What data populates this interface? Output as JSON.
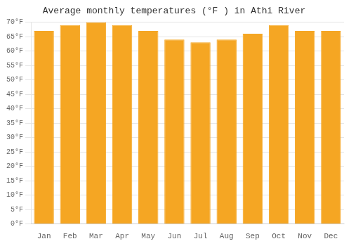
{
  "chart_data": {
    "type": "bar",
    "title": "Average monthly temperatures (°F ) in Athi River",
    "categories": [
      "Jan",
      "Feb",
      "Mar",
      "Apr",
      "May",
      "Jun",
      "Jul",
      "Aug",
      "Sep",
      "Oct",
      "Nov",
      "Dec"
    ],
    "values": [
      67,
      69,
      70,
      69,
      67,
      64,
      63,
      64,
      66,
      69,
      67,
      67
    ],
    "color": "#F5A623",
    "ylim": [
      0,
      70
    ],
    "yticks": [
      {
        "value": 0,
        "label": "0°F"
      },
      {
        "value": 5,
        "label": "5°F"
      },
      {
        "value": 10,
        "label": "10°F"
      },
      {
        "value": 15,
        "label": "15°F"
      },
      {
        "value": 20,
        "label": "20°F"
      },
      {
        "value": 25,
        "label": "25°F"
      },
      {
        "value": 30,
        "label": "30°F"
      },
      {
        "value": 35,
        "label": "35°F"
      },
      {
        "value": 40,
        "label": "40°F"
      },
      {
        "value": 45,
        "label": "45°F"
      },
      {
        "value": 50,
        "label": "50°F"
      },
      {
        "value": 55,
        "label": "55°F"
      },
      {
        "value": 60,
        "label": "60°F"
      },
      {
        "value": 65,
        "label": "65°F"
      },
      {
        "value": 70,
        "label": "70°F"
      }
    ],
    "grid": true
  }
}
